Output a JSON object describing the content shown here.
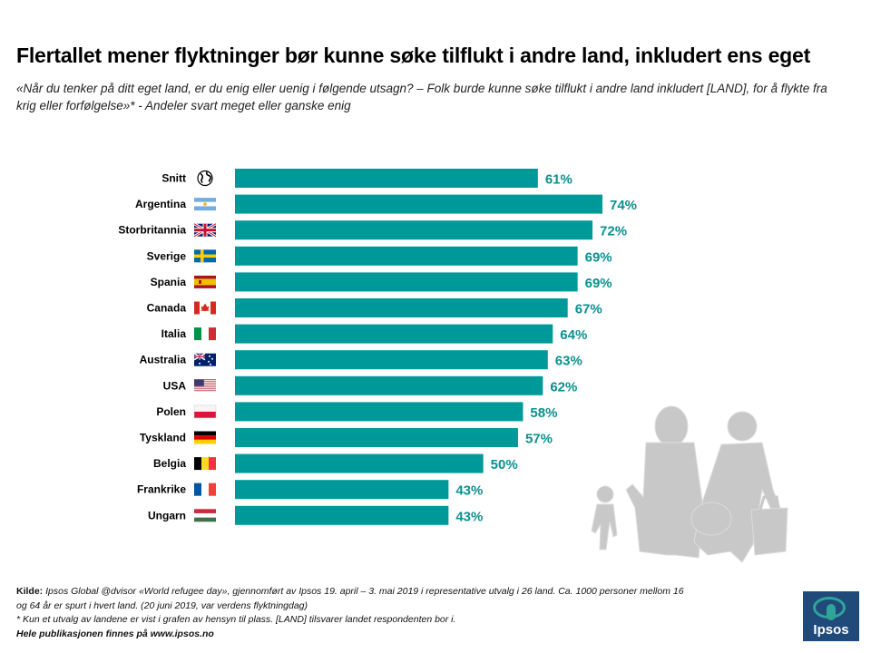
{
  "title": "Flertallet mener flyktninger bør kunne søke tilflukt i andre land, inkludert ens eget",
  "subtitle": "«Når du tenker på ditt eget land, er du enig eller uenig i følgende utsagn? – Folk burde kunne søke tilflukt i andre land inkludert [LAND], for å flykte fra krig eller forfølgelse»* - Andeler svart meget eller ganske enig",
  "chart_data": {
    "type": "bar",
    "orientation": "horizontal",
    "categories": [
      "Snitt",
      "Argentina",
      "Storbritannia",
      "Sverige",
      "Spania",
      "Canada",
      "Italia",
      "Australia",
      "USA",
      "Polen",
      "Tyskland",
      "Belgia",
      "Frankrike",
      "Ungarn"
    ],
    "values": [
      61,
      74,
      72,
      69,
      69,
      67,
      64,
      63,
      62,
      58,
      57,
      50,
      43,
      43
    ],
    "value_labels": [
      "61%",
      "74%",
      "72%",
      "69%",
      "69%",
      "67%",
      "64%",
      "63%",
      "62%",
      "58%",
      "57%",
      "50%",
      "43%",
      "43%"
    ],
    "category_icons": [
      "globe-icon",
      "flag-argentina-icon",
      "flag-uk-icon",
      "flag-sweden-icon",
      "flag-spain-icon",
      "flag-canada-icon",
      "flag-italy-icon",
      "flag-australia-icon",
      "flag-usa-icon",
      "flag-poland-icon",
      "flag-germany-icon",
      "flag-belgium-icon",
      "flag-france-icon",
      "flag-hungary-icon"
    ],
    "bar_color": "#009999",
    "label_color": "#0b8f8f",
    "xlim": [
      0,
      100
    ],
    "grid": false,
    "legend": "none"
  },
  "footer": {
    "source_label": "Kilde:",
    "source_text": "Ipsos Global @dvisor «World refugee day», gjennomført av Ipsos 19. april – 3. mai 2019 i representative utvalg i 26 land. Ca. 1000 personer mellom 16 og 64 år er spurt i hvert land. (20 juni 2019, var verdens flyktningdag)",
    "note": "* Kun et utvalg av landene er vist i grafen av hensyn til plass. [LAND] tilsvarer landet respondenten bor i.",
    "publication": "Hele publikasjonen finnes på www.ipsos.no"
  },
  "logo_text": "Ipsos"
}
